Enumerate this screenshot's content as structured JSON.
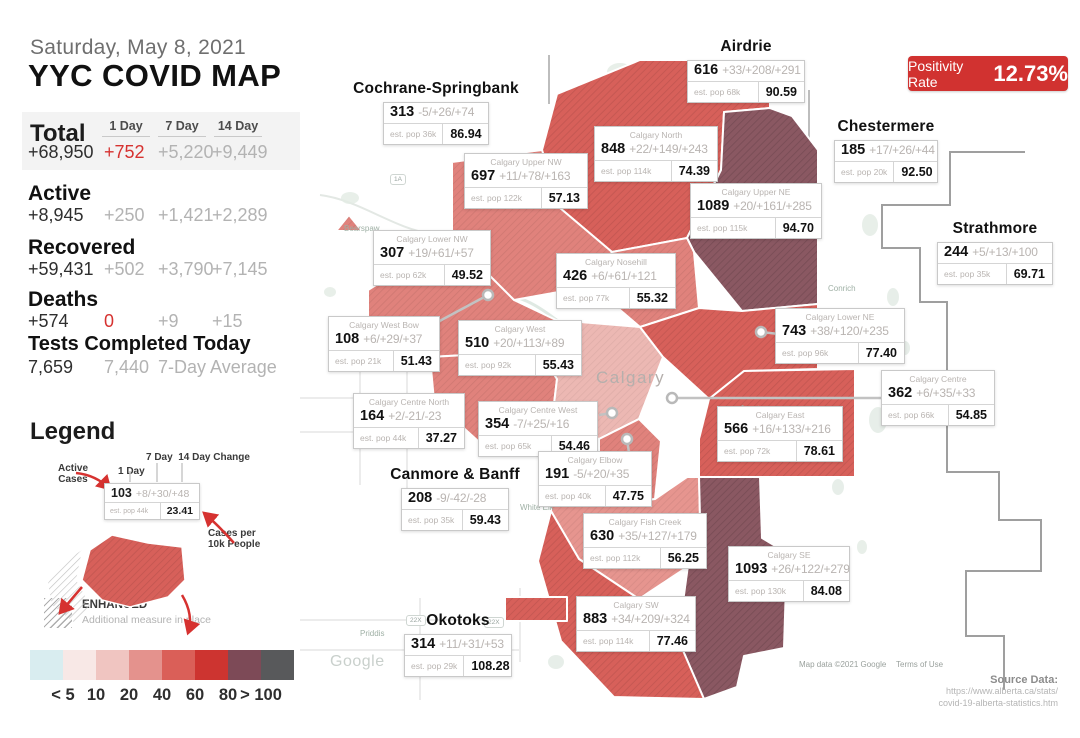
{
  "header": {
    "date": "Saturday, May 8, 2021",
    "title": "YYC COVID MAP"
  },
  "positivity": {
    "label": "Positivity Rate",
    "value": "12.73%"
  },
  "stats": {
    "col_headers": [
      "1 Day",
      "7 Day",
      "14 Day"
    ],
    "total": {
      "label": "Total",
      "value": "+68,950",
      "d1": "+752",
      "d7": "+5,220",
      "d14": "+9,449"
    },
    "active": {
      "label": "Active",
      "value": "+8,945",
      "d1": "+250",
      "d7": "+1,421",
      "d14": "+2,289"
    },
    "recovered": {
      "label": "Recovered",
      "value": "+59,431",
      "d1": "+502",
      "d7": "+3,790",
      "d14": "+7,145"
    },
    "deaths": {
      "label": "Deaths",
      "value": "+574",
      "d1": "0",
      "d7": "+9",
      "d14": "+15"
    },
    "tests": {
      "label": "Tests Completed Today",
      "value": "7,659",
      "average": "7,440",
      "average_label": "7-Day Average"
    }
  },
  "legend": {
    "title": "Legend",
    "annotations": {
      "active_cases": "Active Cases",
      "one_day": "1 Day",
      "seven_fourteen": "7 Day  14 Day Change",
      "cases_per": "Cases per 10k People"
    },
    "sample": {
      "cases": "103",
      "change": "+8/+30/+48",
      "pop": "est. pop 44k",
      "rate": "23.41"
    },
    "enhanced": {
      "label": "ENHANCED",
      "sub": "Additional measure in place"
    }
  },
  "scale": {
    "colors": [
      "#d9edf0",
      "#f8e8e6",
      "#f0c5c1",
      "#e4928d",
      "#da5f58",
      "#cd3430",
      "#7d4a57",
      "#58595b"
    ],
    "labels": [
      "< 5",
      "10",
      "20",
      "40",
      "60",
      "80",
      "> 100"
    ]
  },
  "map": {
    "city_label": "Calgary",
    "micro_labels": [
      "Bearspaw",
      "Conrich",
      "Janet",
      "White Elk",
      "Priddis"
    ],
    "road_badges": [
      "1A",
      "22X",
      "22X"
    ],
    "google_logo": "Google",
    "attribution": "Map data ©2021 Google",
    "terms": "Terms of Use",
    "source": {
      "label": "Source Data:",
      "line1": "https://www.alberta.ca/stats/",
      "line2": "covid-19-alberta-statistics.htm"
    },
    "callouts": [
      {
        "id": "cochrane-springbank",
        "name": "Cochrane-Springbank",
        "cases": "313",
        "change": "-5/+26/+74",
        "pop": "est. pop 36k",
        "rate": "86.94"
      },
      {
        "id": "airdrie",
        "name": "Airdrie",
        "cases": "616",
        "change": "+33/+208/+291",
        "pop": "est. pop 68k",
        "rate": "90.59"
      },
      {
        "id": "chestermere",
        "name": "Chestermere",
        "cases": "185",
        "change": "+17/+26/+44",
        "pop": "est. pop 20k",
        "rate": "92.50"
      },
      {
        "id": "strathmore",
        "name": "Strathmore",
        "cases": "244",
        "change": "+5/+13/+100",
        "pop": "est. pop 35k",
        "rate": "69.71"
      },
      {
        "id": "canmore-banff",
        "name": "Canmore & Banff",
        "cases": "208",
        "change": "-9/-42/-28",
        "pop": "est. pop 35k",
        "rate": "59.43"
      },
      {
        "id": "okotoks",
        "name": "Okotoks",
        "cases": "314",
        "change": "+11/+31/+53",
        "pop": "est. pop 29k",
        "rate": "108.28"
      },
      {
        "id": "calgary-north",
        "name": "Calgary North",
        "cases": "848",
        "change": "+22/+149/+243",
        "pop": "est. pop 114k",
        "rate": "74.39"
      },
      {
        "id": "calgary-upper-nw",
        "name": "Calgary Upper NW",
        "cases": "697",
        "change": "+11/+78/+163",
        "pop": "est. pop 122k",
        "rate": "57.13"
      },
      {
        "id": "calgary-upper-ne",
        "name": "Calgary Upper NE",
        "cases": "1089",
        "change": "+20/+161/+285",
        "pop": "est. pop 115k",
        "rate": "94.70"
      },
      {
        "id": "calgary-lower-nw",
        "name": "Calgary Lower NW",
        "cases": "307",
        "change": "+19/+61/+57",
        "pop": "est. pop 62k",
        "rate": "49.52"
      },
      {
        "id": "calgary-nosehill",
        "name": "Calgary Nosehill",
        "cases": "426",
        "change": "+6/+61/+121",
        "pop": "est. pop 77k",
        "rate": "55.32"
      },
      {
        "id": "calgary-west-bow",
        "name": "Calgary West Bow",
        "cases": "108",
        "change": "+6/+29/+37",
        "pop": "est. pop 21k",
        "rate": "51.43"
      },
      {
        "id": "calgary-west",
        "name": "Calgary West",
        "cases": "510",
        "change": "+20/+113/+89",
        "pop": "est. pop 92k",
        "rate": "55.43"
      },
      {
        "id": "calgary-lower-ne",
        "name": "Calgary Lower NE",
        "cases": "743",
        "change": "+38/+120/+235",
        "pop": "est. pop 96k",
        "rate": "77.40"
      },
      {
        "id": "calgary-centre",
        "name": "Calgary Centre",
        "cases": "362",
        "change": "+6/+35/+33",
        "pop": "est. pop 66k",
        "rate": "54.85"
      },
      {
        "id": "calgary-centre-north",
        "name": "Calgary Centre North",
        "cases": "164",
        "change": "+2/-21/-23",
        "pop": "est. pop 44k",
        "rate": "37.27"
      },
      {
        "id": "calgary-centre-west",
        "name": "Calgary Centre West",
        "cases": "354",
        "change": "-7/+25/+16",
        "pop": "est. pop 65k",
        "rate": "54.46"
      },
      {
        "id": "calgary-east",
        "name": "Calgary East",
        "cases": "566",
        "change": "+16/+133/+216",
        "pop": "est. pop 72k",
        "rate": "78.61"
      },
      {
        "id": "calgary-elbow",
        "name": "Calgary Elbow",
        "cases": "191",
        "change": "-5/+20/+35",
        "pop": "est. pop 40k",
        "rate": "47.75"
      },
      {
        "id": "calgary-fish-creek",
        "name": "Calgary Fish Creek",
        "cases": "630",
        "change": "+35/+127/+179",
        "pop": "est. pop 112k",
        "rate": "56.25"
      },
      {
        "id": "calgary-se",
        "name": "Calgary SE",
        "cases": "1093",
        "change": "+26/+122/+279",
        "pop": "est. pop 130k",
        "rate": "84.08"
      },
      {
        "id": "calgary-sw",
        "name": "Calgary SW",
        "cases": "883",
        "change": "+34/+209/+324",
        "pop": "est. pop 114k",
        "rate": "77.46"
      }
    ]
  }
}
